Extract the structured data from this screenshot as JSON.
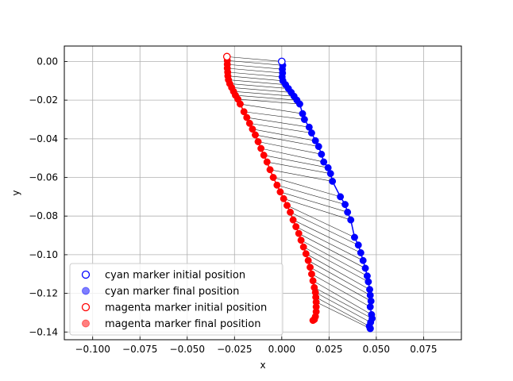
{
  "chart_data": {
    "type": "scatter",
    "title": "",
    "xlabel": "x",
    "ylabel": "y",
    "xlim": [
      -0.115,
      0.095
    ],
    "ylim": [
      -0.144,
      0.008
    ],
    "xticks": [
      -0.1,
      -0.075,
      -0.05,
      -0.025,
      0.0,
      0.025,
      0.05,
      0.075
    ],
    "xtick_labels": [
      "−0.100",
      "−0.075",
      "−0.050",
      "−0.025",
      "0.000",
      "0.025",
      "0.050",
      "0.075"
    ],
    "yticks": [
      0.0,
      -0.02,
      -0.04,
      -0.06,
      -0.08,
      -0.1,
      -0.12,
      -0.14
    ],
    "ytick_labels": [
      "0.00",
      "−0.02",
      "−0.04",
      "−0.06",
      "−0.08",
      "−0.10",
      "−0.12",
      "−0.14"
    ],
    "grid": true,
    "legend_position": "lower-left",
    "connector_color": "#222222",
    "series": [
      {
        "name": "cyan",
        "color": "#0000ff",
        "points": [
          [
            0.0,
            0.0
          ],
          [
            0.0005,
            -0.002
          ],
          [
            0.0003,
            -0.004
          ],
          [
            0.0004,
            -0.006
          ],
          [
            0.0002,
            -0.008
          ],
          [
            0.0006,
            -0.01
          ],
          [
            0.002,
            -0.012
          ],
          [
            0.0035,
            -0.014
          ],
          [
            0.005,
            -0.016
          ],
          [
            0.0065,
            -0.018
          ],
          [
            0.008,
            -0.02
          ],
          [
            0.0095,
            -0.022
          ],
          [
            0.011,
            -0.027
          ],
          [
            0.012,
            -0.03
          ],
          [
            0.0145,
            -0.034
          ],
          [
            0.0158,
            -0.037
          ],
          [
            0.0178,
            -0.041
          ],
          [
            0.0195,
            -0.044
          ],
          [
            0.021,
            -0.048
          ],
          [
            0.0222,
            -0.052
          ],
          [
            0.0245,
            -0.055
          ],
          [
            0.0258,
            -0.058
          ],
          [
            0.0268,
            -0.062
          ],
          [
            0.031,
            -0.07
          ],
          [
            0.0335,
            -0.074
          ],
          [
            0.0348,
            -0.078
          ],
          [
            0.0365,
            -0.082
          ],
          [
            0.0385,
            -0.091
          ],
          [
            0.0405,
            -0.095
          ],
          [
            0.0418,
            -0.099
          ],
          [
            0.043,
            -0.103
          ],
          [
            0.0442,
            -0.107
          ],
          [
            0.0452,
            -0.111
          ],
          [
            0.0458,
            -0.114
          ],
          [
            0.0465,
            -0.118
          ],
          [
            0.0468,
            -0.121
          ],
          [
            0.0472,
            -0.124
          ],
          [
            0.0468,
            -0.127
          ],
          [
            0.0475,
            -0.131
          ],
          [
            0.0478,
            -0.133
          ],
          [
            0.047,
            -0.135
          ],
          [
            0.0463,
            -0.137
          ],
          [
            0.0468,
            -0.1382
          ]
        ]
      },
      {
        "name": "magenta",
        "color": "#ff0000",
        "points": [
          [
            -0.029,
            0.0025
          ],
          [
            -0.0288,
            0.0005
          ],
          [
            -0.0288,
            -0.0015
          ],
          [
            -0.0288,
            -0.0035
          ],
          [
            -0.0286,
            -0.0055
          ],
          [
            -0.0285,
            -0.0075
          ],
          [
            -0.0282,
            -0.0095
          ],
          [
            -0.0275,
            -0.0115
          ],
          [
            -0.0265,
            -0.0135
          ],
          [
            -0.0255,
            -0.0155
          ],
          [
            -0.0245,
            -0.0175
          ],
          [
            -0.0232,
            -0.0195
          ],
          [
            -0.022,
            -0.022
          ],
          [
            -0.02,
            -0.026
          ],
          [
            -0.0185,
            -0.029
          ],
          [
            -0.017,
            -0.032
          ],
          [
            -0.0155,
            -0.035
          ],
          [
            -0.014,
            -0.038
          ],
          [
            -0.0125,
            -0.0415
          ],
          [
            -0.011,
            -0.045
          ],
          [
            -0.0095,
            -0.0485
          ],
          [
            -0.0078,
            -0.052
          ],
          [
            -0.0062,
            -0.056
          ],
          [
            -0.0045,
            -0.06
          ],
          [
            -0.0025,
            -0.064
          ],
          [
            -0.0008,
            -0.0675
          ],
          [
            0.001,
            -0.071
          ],
          [
            0.0028,
            -0.0745
          ],
          [
            0.0045,
            -0.078
          ],
          [
            0.006,
            -0.082
          ],
          [
            0.0075,
            -0.0855
          ],
          [
            0.009,
            -0.089
          ],
          [
            0.0102,
            -0.0925
          ],
          [
            0.0115,
            -0.096
          ],
          [
            0.0128,
            -0.0995
          ],
          [
            0.014,
            -0.103
          ],
          [
            0.015,
            -0.1065
          ],
          [
            0.0158,
            -0.11
          ],
          [
            0.0165,
            -0.1135
          ],
          [
            0.0172,
            -0.117
          ],
          [
            0.0178,
            -0.1195
          ],
          [
            0.018,
            -0.122
          ],
          [
            0.0182,
            -0.1245
          ],
          [
            0.0182,
            -0.127
          ],
          [
            0.0182,
            -0.1295
          ],
          [
            0.0178,
            -0.132
          ],
          [
            0.0165,
            -0.134
          ],
          [
            0.0172,
            -0.1335
          ]
        ]
      }
    ],
    "legend": [
      {
        "label": "cyan marker initial position",
        "color": "#0000ff",
        "style": "hollow"
      },
      {
        "label": "cyan marker final position",
        "color": "#0000ff",
        "style": "filled"
      },
      {
        "label": "magenta marker initial position",
        "color": "#ff0000",
        "style": "hollow"
      },
      {
        "label": "magenta marker final position",
        "color": "#ff0000",
        "style": "filled"
      }
    ]
  }
}
